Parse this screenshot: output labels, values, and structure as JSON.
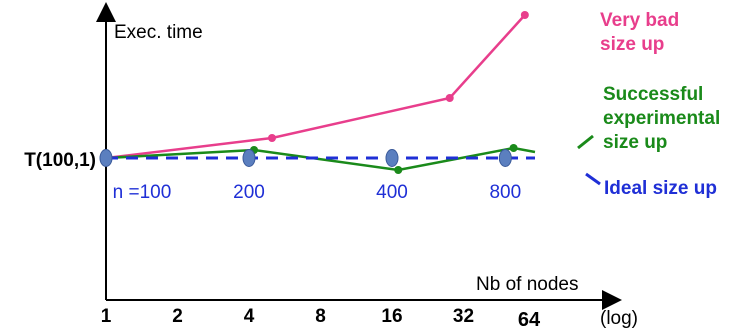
{
  "chart_data": {
    "type": "line",
    "ylabel": "Exec. time",
    "xlabel": "Nb of nodes",
    "x_ticks": [
      "1",
      "2",
      "4",
      "8",
      "16",
      "32",
      "64"
    ],
    "x_scale_note": "(log)",
    "y_reference_label": "T(100,1)",
    "problem_size_labels": [
      "n =100",
      "200",
      "400",
      "800"
    ],
    "series": [
      {
        "name": "Very bad size up",
        "name_lines": [
          "Very bad",
          "size up"
        ],
        "color": "#e83e8c",
        "x": [
          1,
          5,
          28,
          58
        ],
        "y": [
          1.0,
          1.2,
          1.6,
          2.43
        ]
      },
      {
        "name": "Successful experimental size up",
        "name_lines": [
          "Successful",
          "experimental",
          "size up"
        ],
        "color": "#1a8a1a",
        "x": [
          1,
          4.2,
          17,
          52,
          64
        ],
        "y": [
          1.0,
          1.08,
          0.88,
          1.1,
          1.06
        ]
      },
      {
        "name": "Ideal size up",
        "name_lines": [
          "Ideal size up"
        ],
        "color": "#1f2fd6",
        "x": [
          1,
          64
        ],
        "y": [
          1.0,
          1.0
        ]
      }
    ],
    "ideal_markers_x": [
      1,
      4,
      16,
      48
    ],
    "ideal_marker_color": "#5b7fbf"
  }
}
